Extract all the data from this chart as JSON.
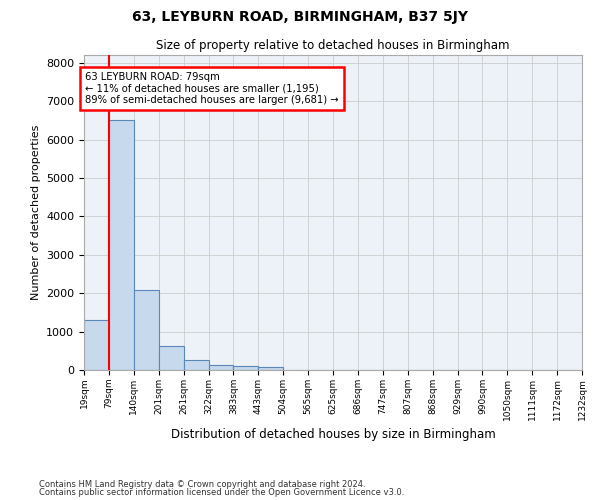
{
  "title": "63, LEYBURN ROAD, BIRMINGHAM, B37 5JY",
  "subtitle": "Size of property relative to detached houses in Birmingham",
  "xlabel": "Distribution of detached houses by size in Birmingham",
  "ylabel": "Number of detached properties",
  "bin_labels": [
    "19sqm",
    "79sqm",
    "140sqm",
    "201sqm",
    "261sqm",
    "322sqm",
    "383sqm",
    "443sqm",
    "504sqm",
    "565sqm",
    "625sqm",
    "686sqm",
    "747sqm",
    "807sqm",
    "868sqm",
    "929sqm",
    "990sqm",
    "1050sqm",
    "1111sqm",
    "1172sqm",
    "1232sqm"
  ],
  "bar_heights": [
    1300,
    6500,
    2080,
    630,
    250,
    130,
    100,
    80,
    0,
    0,
    0,
    0,
    0,
    0,
    0,
    0,
    0,
    0,
    0,
    0
  ],
  "bar_color": "#c7d9ed",
  "bar_edge_color": "#5a87b8",
  "property_line_x": 1,
  "annotation_text": "63 LEYBURN ROAD: 79sqm\n← 11% of detached houses are smaller (1,195)\n89% of semi-detached houses are larger (9,681) →",
  "annotation_box_color": "white",
  "annotation_box_edge": "red",
  "vline_color": "red",
  "ylim": [
    0,
    8200
  ],
  "yticks": [
    0,
    1000,
    2000,
    3000,
    4000,
    5000,
    6000,
    7000,
    8000
  ],
  "grid_color": "#cccccc",
  "background_color": "#edf1f8",
  "footnote1": "Contains HM Land Registry data © Crown copyright and database right 2024.",
  "footnote2": "Contains public sector information licensed under the Open Government Licence v3.0."
}
